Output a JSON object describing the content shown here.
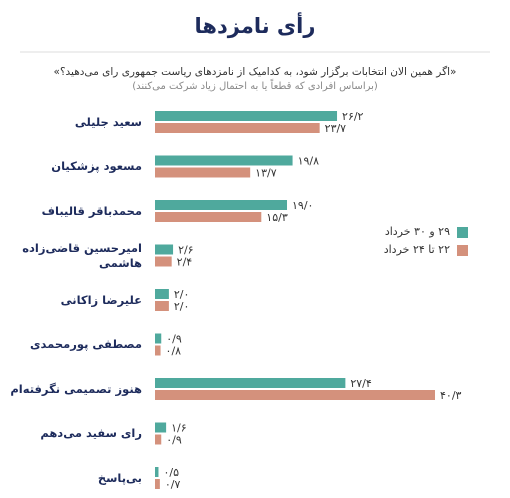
{
  "chart_data": {
    "type": "bar",
    "orientation": "horizontal",
    "title": "رأی نامزدها",
    "subtitle": "«اگر همین الان انتخابات برگزار شود، به کدامیک از نامزدهای ریاست جمهوری رای می‌دهید؟»",
    "note": "(براساس افرادی که قطعاً یا به احتمال زیاد شرکت می‌کنند)",
    "categories": [
      "سعید جلیلی",
      "مسعود پزشکیان",
      "محمدباقر قالیباف",
      "امیرحسین قاضی‌زاده\nهاشمی",
      "علیرضا زاکانی",
      "مصطفی پورمحمدی",
      "هنوز تصمیمی نگرفته‌ام",
      "رای سفید می‌دهم",
      "بی‌پاسخ"
    ],
    "series": [
      {
        "name": "۲۹ و ۳۰ خرداد",
        "color": "#4fa99d",
        "values": [
          26.2,
          19.8,
          19.0,
          2.6,
          2.0,
          0.9,
          27.4,
          1.6,
          0.5
        ],
        "value_labels": [
          "۲۶/۲",
          "۱۹/۸",
          "۱۹/۰",
          "۲/۶",
          "۲/۰",
          "۰/۹",
          "۲۷/۴",
          "۱/۶",
          "۰/۵"
        ]
      },
      {
        "name": "۲۲ تا ۲۴ خرداد",
        "color": "#d4917c",
        "values": [
          23.7,
          13.7,
          15.3,
          2.4,
          2.0,
          0.8,
          40.3,
          0.9,
          0.7
        ],
        "value_labels": [
          "۲۳/۷",
          "۱۳/۷",
          "۱۵/۳",
          "۲/۴",
          "۲/۰",
          "۰/۸",
          "۴۰/۳",
          "۰/۹",
          "۰/۷"
        ]
      }
    ],
    "legend": "right"
  }
}
